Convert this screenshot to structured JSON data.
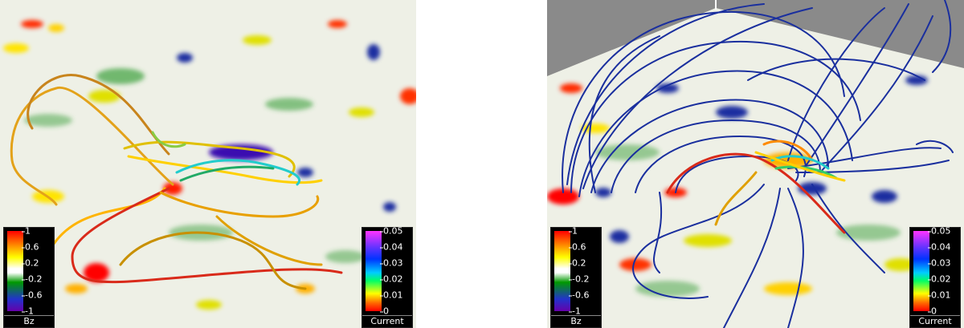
{
  "panels": [
    {
      "bz_legend": {
        "title": "Bz",
        "ticks": [
          "1",
          "0.6",
          "0.2",
          "-0.2",
          "-0.6",
          "-1"
        ]
      },
      "current_legend": {
        "title": "Current",
        "ticks": [
          "0.05",
          "0.04",
          "0.03",
          "0.02",
          "0.01",
          "0"
        ]
      }
    },
    {
      "bz_legend": {
        "title": "Bz",
        "ticks": [
          "1",
          "0.6",
          "0.2",
          "-0.2",
          "-0.6",
          "-1"
        ]
      },
      "current_legend": {
        "title": "Current",
        "ticks": [
          "0.05",
          "0.04",
          "0.03",
          "0.02",
          "0.01",
          "0"
        ]
      }
    }
  ],
  "colors": {
    "bz_scale": [
      "#ff0000",
      "#ff8c00",
      "#ffff00",
      "#ffffff",
      "#009900",
      "#2233cc",
      "#6600aa"
    ],
    "current_scale": [
      "#ff33ff",
      "#6633ff",
      "#0033ff",
      "#00ccff",
      "#00ff66",
      "#ffff00",
      "#ff6600",
      "#ff0000"
    ],
    "wall": "#8a8a8a",
    "field_line_blue": "#1a2f9e"
  }
}
